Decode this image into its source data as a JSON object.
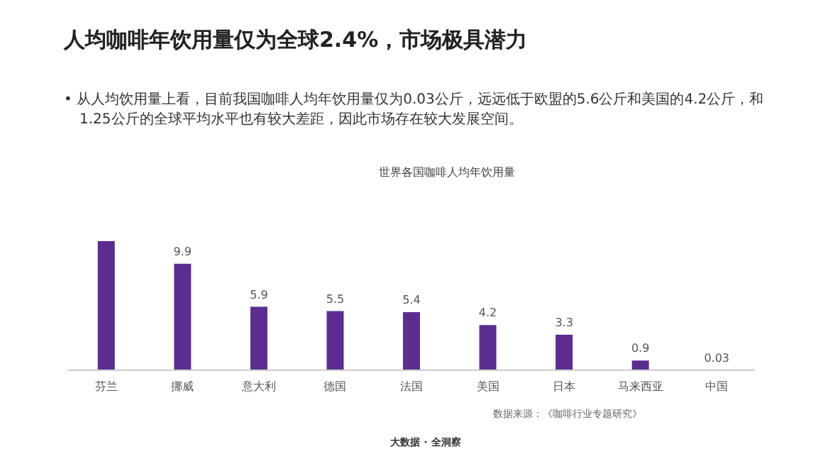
{
  "chart_data": {
    "type": "bar",
    "title": "人均咖啡年饮用量仅为全球2.4%，市场极具潜力",
    "subtitle": "世界各国咖啡人均年饮用量",
    "annotations": [
      "• 从人均饮用量上看，目前我国咖啡人均年饮用量仅为0.03公斤，远远低于欧盟的5.6公斤和美国的4.2公斤，和1.25公斤的全球平均水平也有较大差距，因此市场存在较大发展空间。",
      "数据来源：《咖啡行业专题研究》",
      "大数据 · 全洞察"
    ],
    "categories": [
      "芬兰",
      "挪威",
      "意大利",
      "德国",
      "法国",
      "美国",
      "日本",
      "马来西亚",
      "中国"
    ],
    "values": [
      12.0,
      9.9,
      5.9,
      5.5,
      5.4,
      4.2,
      3.3,
      0.9,
      0.03
    ],
    "value_labels": [
      null,
      "9.9",
      "5.9",
      "5.5",
      "5.4",
      "4.2",
      "3.3",
      "0.9",
      "0.03"
    ],
    "color": "#5b2d91"
  }
}
